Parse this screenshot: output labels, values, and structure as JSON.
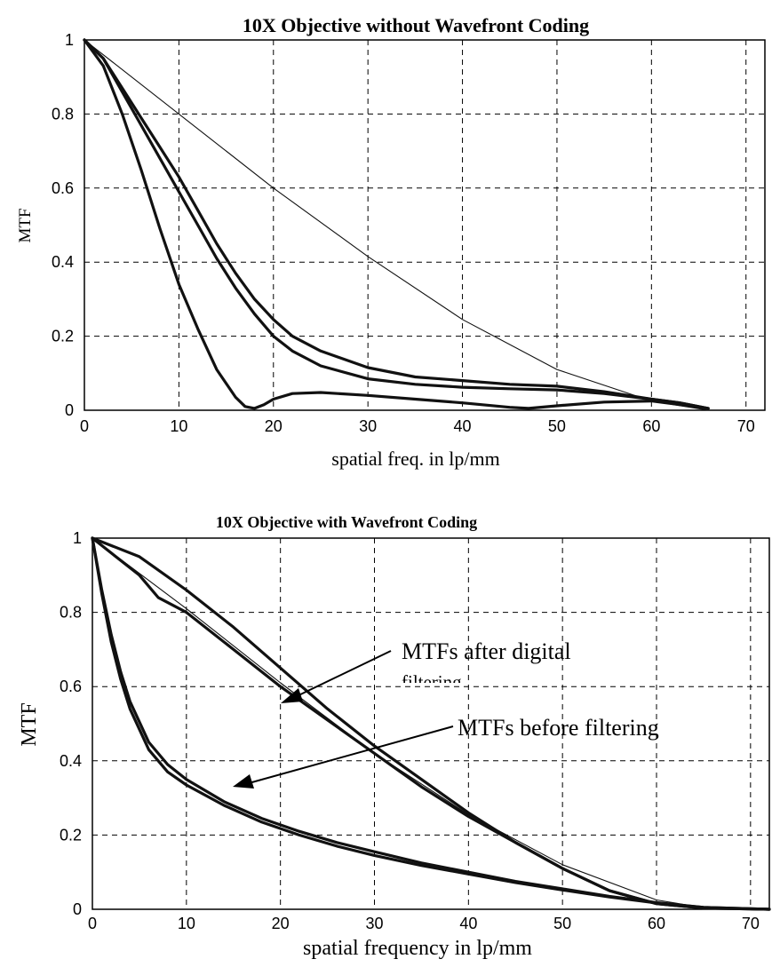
{
  "chart_data": [
    {
      "type": "line",
      "title": "10X Objective without Wavefront Coding",
      "xlabel": "spatial freq. in lp/mm",
      "ylabel": "MTF",
      "xlim": [
        0,
        72
      ],
      "ylim": [
        0,
        1
      ],
      "xticks": [
        "0",
        "10",
        "20",
        "30",
        "40",
        "50",
        "60",
        "70"
      ],
      "yticks": [
        "0",
        "0.2",
        "0.4",
        "0.6",
        "0.8",
        "1"
      ],
      "grid": true,
      "series": [
        {
          "style": "thin",
          "x": [
            0,
            10,
            20,
            30,
            40,
            50,
            60,
            66
          ],
          "y": [
            1,
            0.8,
            0.6,
            0.415,
            0.245,
            0.11,
            0.025,
            0.0
          ]
        },
        {
          "style": "thick",
          "x": [
            0,
            2,
            4,
            6,
            8,
            10,
            12,
            14,
            16,
            18,
            20,
            22,
            25,
            30,
            35,
            40,
            45,
            50,
            55,
            60,
            63,
            66
          ],
          "y": [
            1,
            0.95,
            0.87,
            0.79,
            0.71,
            0.63,
            0.54,
            0.45,
            0.37,
            0.3,
            0.245,
            0.2,
            0.16,
            0.115,
            0.09,
            0.08,
            0.07,
            0.065,
            0.05,
            0.03,
            0.02,
            0.005
          ]
        },
        {
          "style": "thick",
          "x": [
            0,
            2,
            4,
            6,
            8,
            10,
            12,
            14,
            16,
            18,
            20,
            22,
            25,
            30,
            35,
            40,
            45,
            50,
            55,
            60,
            63,
            66
          ],
          "y": [
            1,
            0.95,
            0.86,
            0.77,
            0.68,
            0.59,
            0.5,
            0.41,
            0.33,
            0.26,
            0.2,
            0.16,
            0.12,
            0.085,
            0.07,
            0.062,
            0.058,
            0.055,
            0.045,
            0.03,
            0.02,
            0.005
          ]
        },
        {
          "style": "thick",
          "x": [
            0,
            2,
            4,
            6,
            8,
            10,
            12,
            14,
            16,
            17,
            18,
            19,
            20,
            22,
            25,
            30,
            35,
            40,
            45,
            47,
            50,
            55,
            60,
            63,
            66
          ],
          "y": [
            1,
            0.93,
            0.8,
            0.65,
            0.49,
            0.34,
            0.22,
            0.11,
            0.035,
            0.01,
            0.005,
            0.015,
            0.03,
            0.045,
            0.048,
            0.04,
            0.03,
            0.02,
            0.008,
            0.005,
            0.012,
            0.022,
            0.025,
            0.015,
            0.005
          ]
        }
      ]
    },
    {
      "type": "line",
      "title": "10X Objective with Wavefront Coding",
      "xlabel": "spatial frequency in lp/mm",
      "ylabel": "MTF",
      "xlim": [
        0,
        72
      ],
      "ylim": [
        0,
        1
      ],
      "xticks": [
        "0",
        "10",
        "20",
        "30",
        "40",
        "50",
        "60",
        "70"
      ],
      "yticks": [
        "0",
        "0.2",
        "0.4",
        "0.6",
        "0.8",
        "1"
      ],
      "grid": true,
      "annotations": [
        {
          "text": "MTFs after digital",
          "point_to": [
            20,
            0.64
          ]
        },
        {
          "text": "filtering",
          "point_to": null
        },
        {
          "text": "MTFs before filtering",
          "point_to": [
            14,
            0.33
          ]
        }
      ],
      "series": [
        {
          "style": "thin",
          "x": [
            0,
            10,
            20,
            30,
            40,
            50,
            60,
            66
          ],
          "y": [
            1,
            0.81,
            0.61,
            0.42,
            0.255,
            0.12,
            0.025,
            0.0
          ]
        },
        {
          "style": "thick",
          "x": [
            0,
            5,
            10,
            15,
            20,
            25,
            30,
            35,
            40,
            45,
            50,
            55,
            60,
            65,
            72
          ],
          "y": [
            1,
            0.95,
            0.86,
            0.76,
            0.65,
            0.54,
            0.44,
            0.35,
            0.26,
            0.18,
            0.11,
            0.05,
            0.015,
            0.003,
            0.0
          ]
        },
        {
          "style": "thick",
          "x": [
            0,
            5,
            7,
            10,
            15,
            20,
            25,
            30,
            35,
            40,
            45,
            50,
            55,
            60,
            65,
            72
          ],
          "y": [
            1,
            0.9,
            0.84,
            0.8,
            0.7,
            0.6,
            0.51,
            0.42,
            0.33,
            0.25,
            0.18,
            0.11,
            0.05,
            0.015,
            0.003,
            0.0
          ]
        },
        {
          "style": "thick",
          "x": [
            0,
            1,
            2,
            3,
            4,
            6,
            8,
            10,
            14,
            18,
            22,
            26,
            30,
            35,
            40,
            45,
            50,
            55,
            60,
            65,
            72
          ],
          "y": [
            1,
            0.86,
            0.74,
            0.64,
            0.56,
            0.45,
            0.39,
            0.35,
            0.29,
            0.245,
            0.21,
            0.18,
            0.155,
            0.125,
            0.1,
            0.075,
            0.055,
            0.035,
            0.018,
            0.005,
            0.0
          ]
        },
        {
          "style": "thick",
          "x": [
            0,
            1,
            2,
            3,
            4,
            6,
            8,
            10,
            14,
            18,
            22,
            26,
            30,
            35,
            40,
            45,
            50,
            55,
            60,
            65,
            72
          ],
          "y": [
            1,
            0.85,
            0.72,
            0.62,
            0.54,
            0.43,
            0.37,
            0.335,
            0.28,
            0.235,
            0.2,
            0.17,
            0.145,
            0.118,
            0.095,
            0.072,
            0.052,
            0.033,
            0.017,
            0.005,
            0.0
          ]
        }
      ]
    }
  ]
}
